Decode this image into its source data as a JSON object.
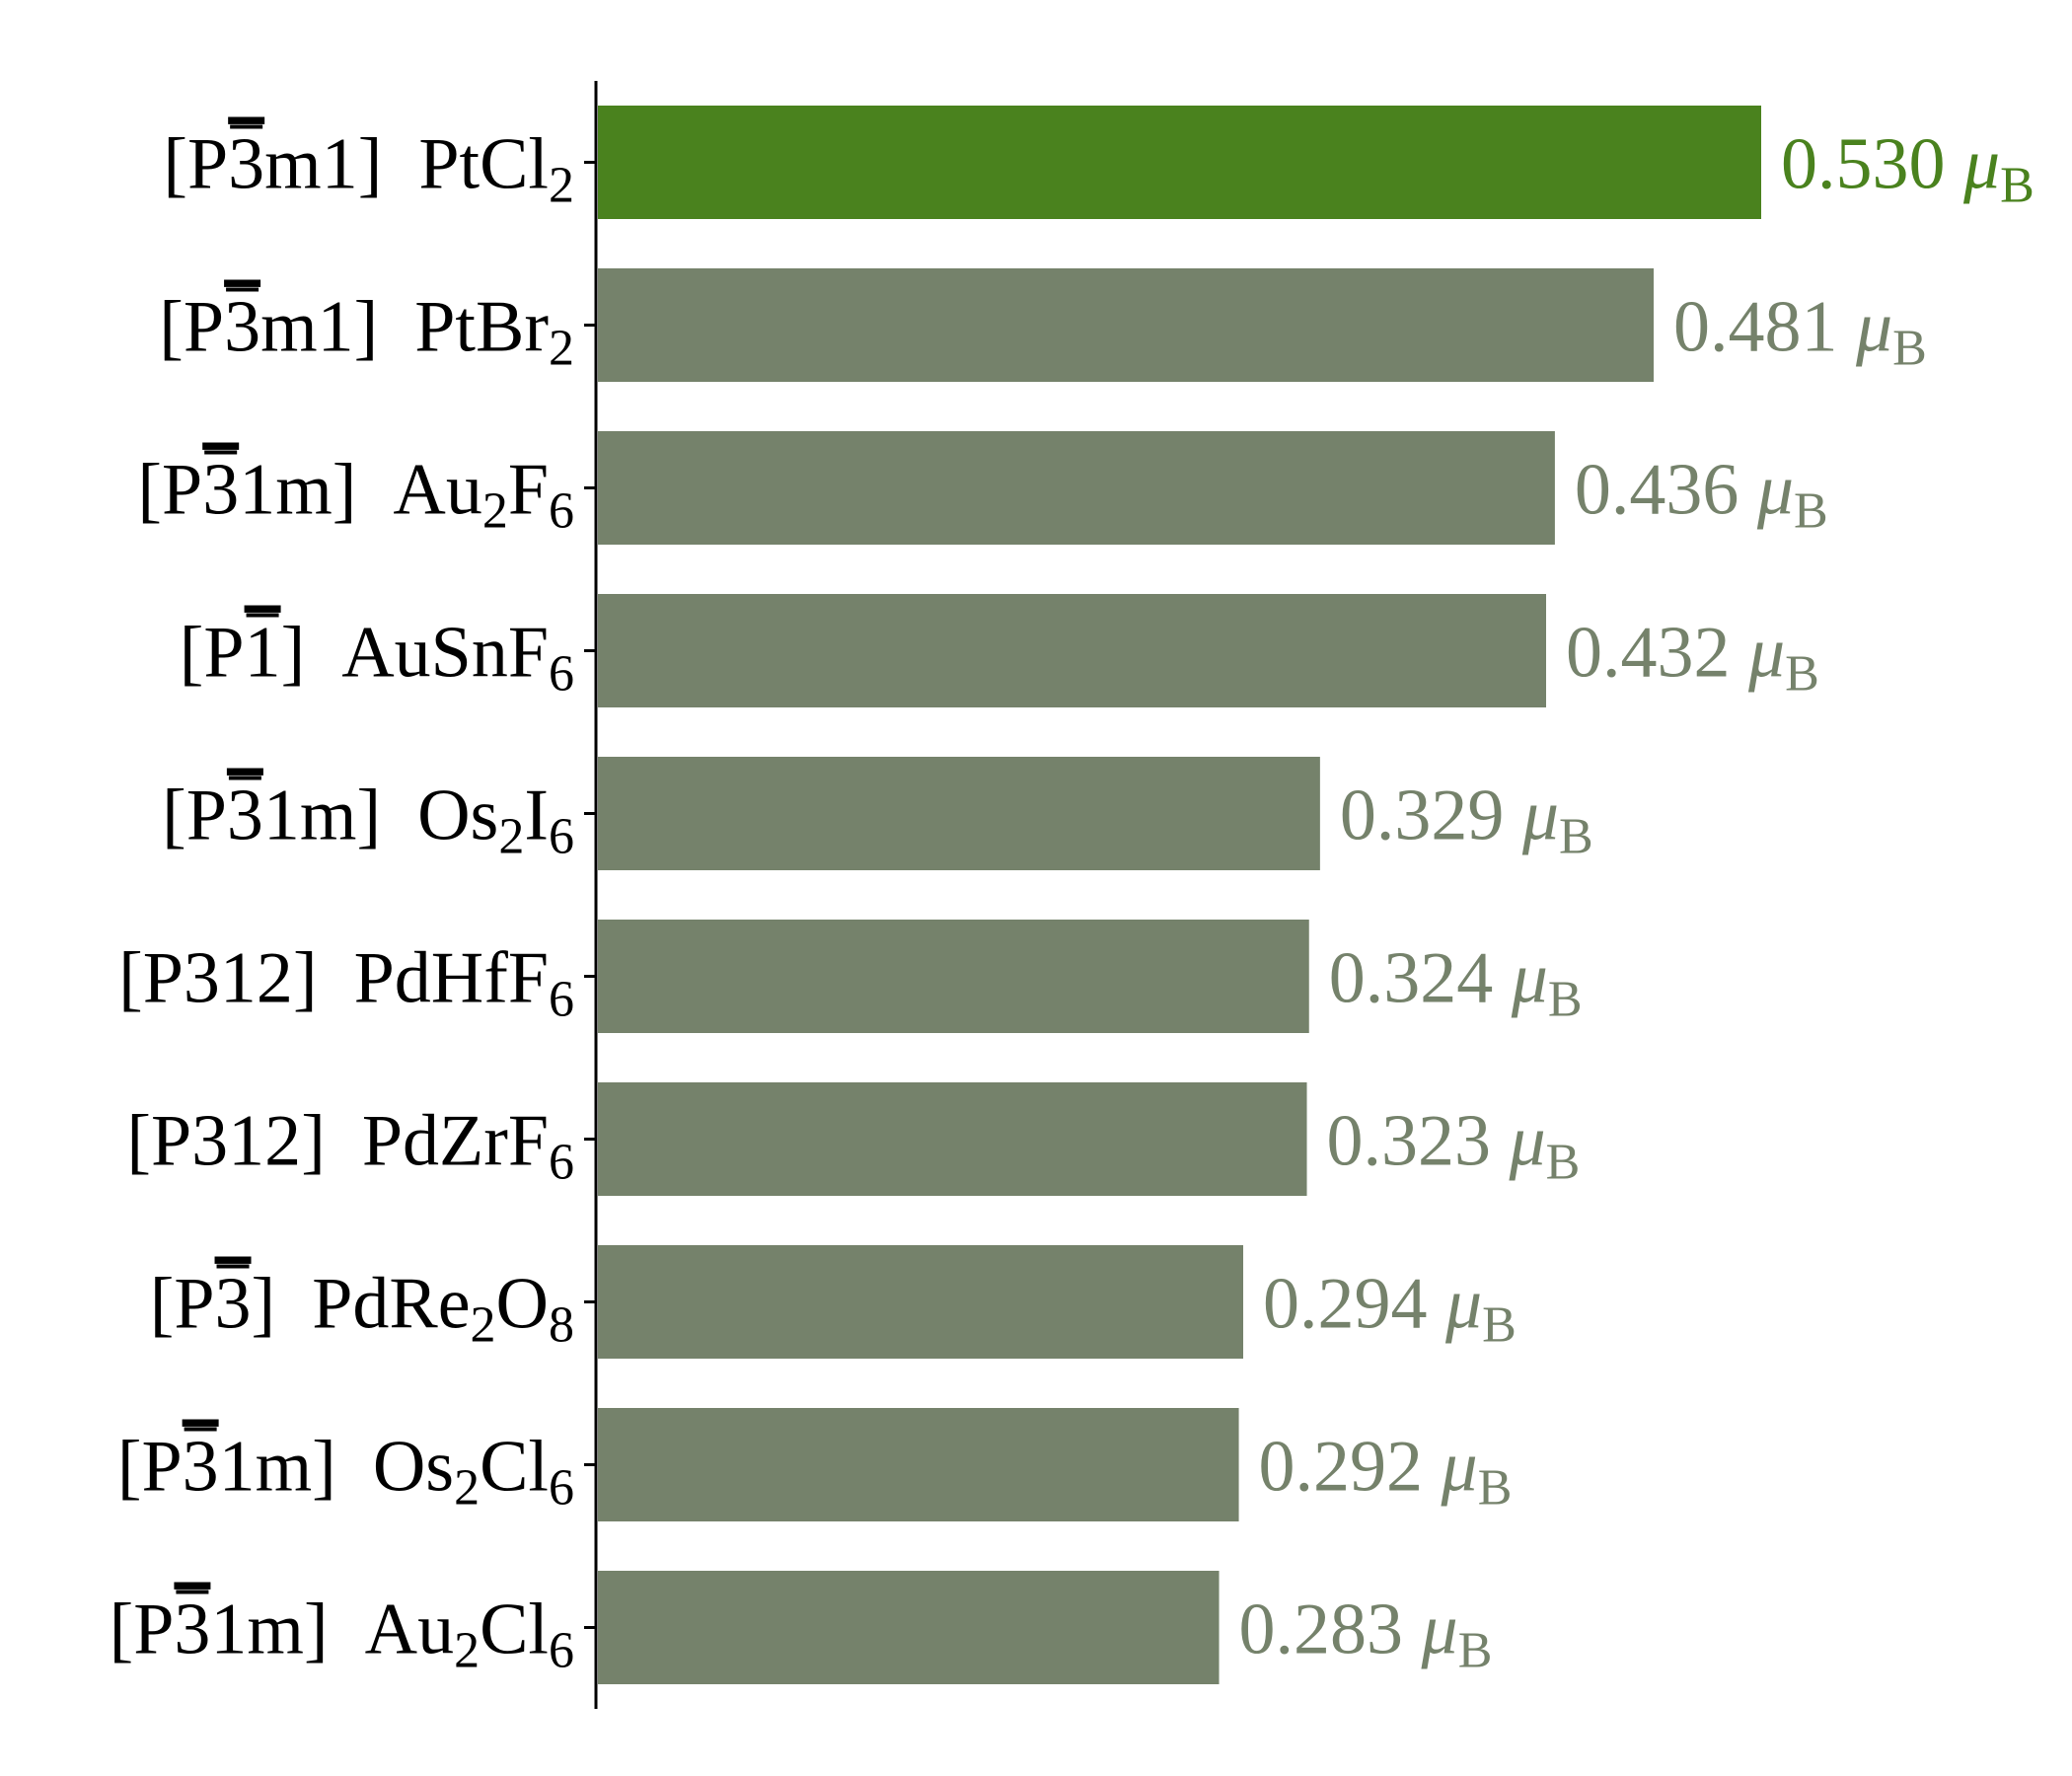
{
  "chart_data": {
    "type": "bar",
    "orientation": "horizontal",
    "categories": [
      {
        "space_group": {
          "prefix": "P",
          "bar": "3",
          "suffix": "m1"
        },
        "formula": [
          [
            "Pt",
            ""
          ],
          [
            "Cl",
            "2"
          ]
        ]
      },
      {
        "space_group": {
          "prefix": "P",
          "bar": "3",
          "suffix": "m1"
        },
        "formula": [
          [
            "Pt",
            ""
          ],
          [
            "Br",
            "2"
          ]
        ]
      },
      {
        "space_group": {
          "prefix": "P",
          "bar": "3",
          "suffix": "1m"
        },
        "formula": [
          [
            "Au",
            "2"
          ],
          [
            "F",
            "6"
          ]
        ]
      },
      {
        "space_group": {
          "prefix": "P",
          "bar": "1",
          "suffix": ""
        },
        "formula": [
          [
            "AuSn",
            ""
          ],
          [
            "F",
            "6"
          ]
        ]
      },
      {
        "space_group": {
          "prefix": "P",
          "bar": "3",
          "suffix": "1m"
        },
        "formula": [
          [
            "Os",
            "2"
          ],
          [
            "I",
            "6"
          ]
        ]
      },
      {
        "space_group": {
          "prefix": "P312",
          "bar": "",
          "suffix": ""
        },
        "formula": [
          [
            "PdHf",
            ""
          ],
          [
            "F",
            "6"
          ]
        ]
      },
      {
        "space_group": {
          "prefix": "P312",
          "bar": "",
          "suffix": ""
        },
        "formula": [
          [
            "PdZr",
            ""
          ],
          [
            "F",
            "6"
          ]
        ]
      },
      {
        "space_group": {
          "prefix": "P",
          "bar": "3",
          "suffix": ""
        },
        "formula": [
          [
            "PdRe",
            "2"
          ],
          [
            "O",
            "8"
          ]
        ]
      },
      {
        "space_group": {
          "prefix": "P",
          "bar": "3",
          "suffix": "1m"
        },
        "formula": [
          [
            "Os",
            "2"
          ],
          [
            "Cl",
            "6"
          ]
        ]
      },
      {
        "space_group": {
          "prefix": "P",
          "bar": "3",
          "suffix": "1m"
        },
        "formula": [
          [
            "Au",
            "2"
          ],
          [
            "Cl",
            "6"
          ]
        ]
      }
    ],
    "values": [
      0.53,
      0.481,
      0.436,
      0.432,
      0.329,
      0.324,
      0.323,
      0.294,
      0.292,
      0.283
    ],
    "value_labels": [
      "0.530",
      "0.481",
      "0.436",
      "0.432",
      "0.329",
      "0.324",
      "0.323",
      "0.294",
      "0.292",
      "0.283"
    ],
    "unit_symbol": "μ",
    "unit_subscript": "B",
    "highlight_index": 0,
    "colors": {
      "highlight": "#4a821e",
      "default": "#75826b",
      "axis": "#000000",
      "text": "#000000"
    },
    "xlim": [
      0,
      0.56
    ],
    "grid": false,
    "legend": "none",
    "title": "",
    "xlabel": "",
    "ylabel": ""
  }
}
